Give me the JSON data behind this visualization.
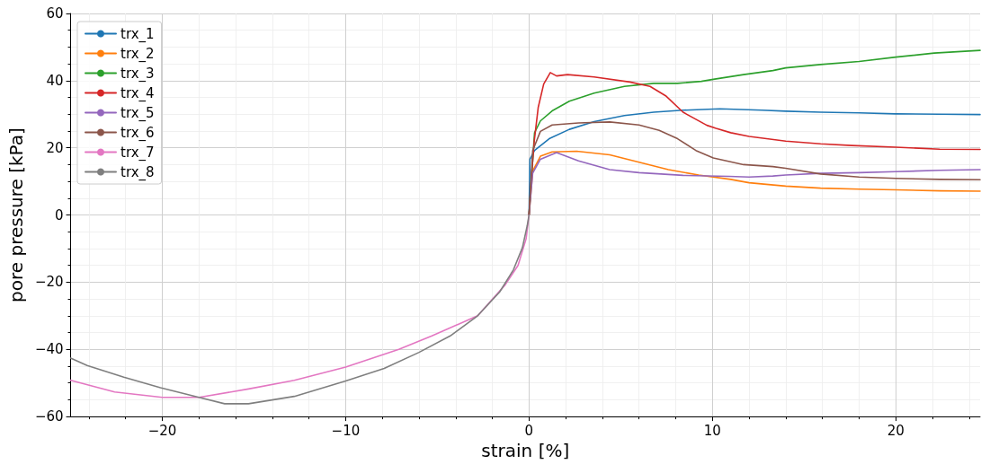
{
  "chart_data": {
    "type": "line",
    "xlabel": "strain [%]",
    "ylabel": "pore pressure [kPa]",
    "xlim": [
      -25,
      24.6
    ],
    "xticks": [
      {
        "value": -20,
        "label": "−20"
      },
      {
        "value": -10,
        "label": "−10"
      },
      0,
      10,
      20
    ],
    "ylim": [
      -60,
      60
    ],
    "yticks": [
      {
        "value": -60,
        "label": "−60"
      },
      {
        "value": -40,
        "label": "−40"
      },
      {
        "value": -20,
        "label": "−20"
      },
      0,
      20,
      40,
      60
    ],
    "grid": true,
    "legend": "top left",
    "marker": "none",
    "line_style": "solid",
    "series": [
      {
        "name": "trx_1",
        "color": "#1f77b4",
        "x": [
          0,
          0.05,
          0.3,
          1.1,
          2.2,
          3.55,
          5.2,
          6.8,
          8.4,
          10.4,
          12.7,
          14,
          15.9,
          18,
          20,
          22.4,
          24.6
        ],
        "values": [
          0,
          16.6,
          19.2,
          22.7,
          25.5,
          27.8,
          29.6,
          30.6,
          31.2,
          31.6,
          31.2,
          30.9,
          30.6,
          30.4,
          30.1,
          30,
          29.9
        ]
      },
      {
        "name": "trx_2",
        "color": "#ff7f0e",
        "x": [
          0,
          0.2,
          0.62,
          1.26,
          2.6,
          4.4,
          6,
          7.6,
          9.25,
          11,
          12,
          14,
          15.9,
          18,
          20,
          22.4,
          24.6
        ],
        "values": [
          0,
          13.1,
          17.5,
          18.8,
          19,
          17.9,
          15.7,
          13.5,
          11.9,
          10.6,
          9.6,
          8.6,
          8,
          7.7,
          7.5,
          7.2,
          7.1
        ]
      },
      {
        "name": "trx_3",
        "color": "#2ca02c",
        "x": [
          0,
          0.3,
          0.62,
          1.26,
          2.2,
          3.55,
          5.2,
          6.8,
          8.1,
          9.4,
          10.05,
          11.7,
          13.3,
          14,
          15.9,
          18,
          20,
          22.1,
          24.6
        ],
        "values": [
          0,
          24.5,
          28,
          31,
          33.9,
          36.3,
          38.3,
          39.2,
          39.2,
          39.8,
          40.4,
          41.8,
          43,
          43.8,
          44.8,
          45.7,
          47,
          48.2,
          49
        ]
      },
      {
        "name": "trx_4",
        "color": "#d62728",
        "x": [
          0,
          0.13,
          0.28,
          0.5,
          0.8,
          1.16,
          1.5,
          2.1,
          3.55,
          5.5,
          6.6,
          7.45,
          8.4,
          9.7,
          10.2,
          11,
          12,
          14,
          15.9,
          17.6,
          20,
          22.4,
          24.6
        ],
        "values": [
          0,
          11.3,
          21.8,
          32,
          39,
          42.4,
          41.4,
          41.8,
          41.1,
          39.6,
          38.3,
          35.5,
          30.6,
          26.7,
          25.8,
          24.5,
          23.4,
          22,
          21.2,
          20.7,
          20.2,
          19.6,
          19.5
        ]
      },
      {
        "name": "trx_5",
        "color": "#9467bd",
        "x": [
          0,
          0.2,
          0.62,
          1.5,
          2.7,
          4.4,
          6,
          8.4,
          10.9,
          12,
          13.3,
          14,
          15.9,
          18,
          20,
          22.4,
          24.6
        ],
        "values": [
          0,
          12.5,
          16.6,
          18.6,
          16.1,
          13.5,
          12.6,
          11.8,
          11.5,
          11.3,
          11.6,
          11.9,
          12.4,
          12.6,
          12.9,
          13.3,
          13.5
        ]
      },
      {
        "name": "trx_6",
        "color": "#8c564b",
        "x": [
          0,
          0.2,
          0.62,
          1.26,
          2.7,
          4.4,
          6,
          7.1,
          8.1,
          9.1,
          10.05,
          11.7,
          13.3,
          14,
          15.9,
          18,
          20,
          22.4,
          24.6
        ],
        "values": [
          0,
          19.2,
          24.9,
          26.8,
          27.4,
          27.7,
          26.8,
          25.2,
          22.7,
          19.2,
          17,
          15,
          14.4,
          13.9,
          12.2,
          11.3,
          10.9,
          10.6,
          10.5
        ]
      },
      {
        "name": "trx_7",
        "color": "#e377c2",
        "x": [
          -25,
          -22.6,
          -20,
          -18,
          -15.3,
          -12.8,
          -10,
          -7.1,
          -5.3,
          -2.8,
          -1.3,
          -0.6,
          -0.16,
          0
        ],
        "values": [
          -49.2,
          -52.7,
          -54.3,
          -54.3,
          -51.8,
          -49.2,
          -45.3,
          -40,
          -36,
          -30,
          -20.8,
          -15,
          -7.1,
          0
        ]
      },
      {
        "name": "trx_8",
        "color": "#7f7f7f",
        "x": [
          -25,
          -24.1,
          -22.1,
          -20.1,
          -18,
          -16.6,
          -15.3,
          -12.8,
          -10,
          -7.9,
          -6,
          -4.3,
          -2.8,
          -1.6,
          -0.85,
          -0.36,
          -0.1,
          0
        ],
        "values": [
          -42.6,
          -44.8,
          -48.3,
          -51.4,
          -54.3,
          -56.2,
          -56.2,
          -54,
          -49.4,
          -45.7,
          -40.9,
          -36,
          -30,
          -22.9,
          -16.3,
          -9.7,
          -3.2,
          0
        ]
      }
    ]
  }
}
